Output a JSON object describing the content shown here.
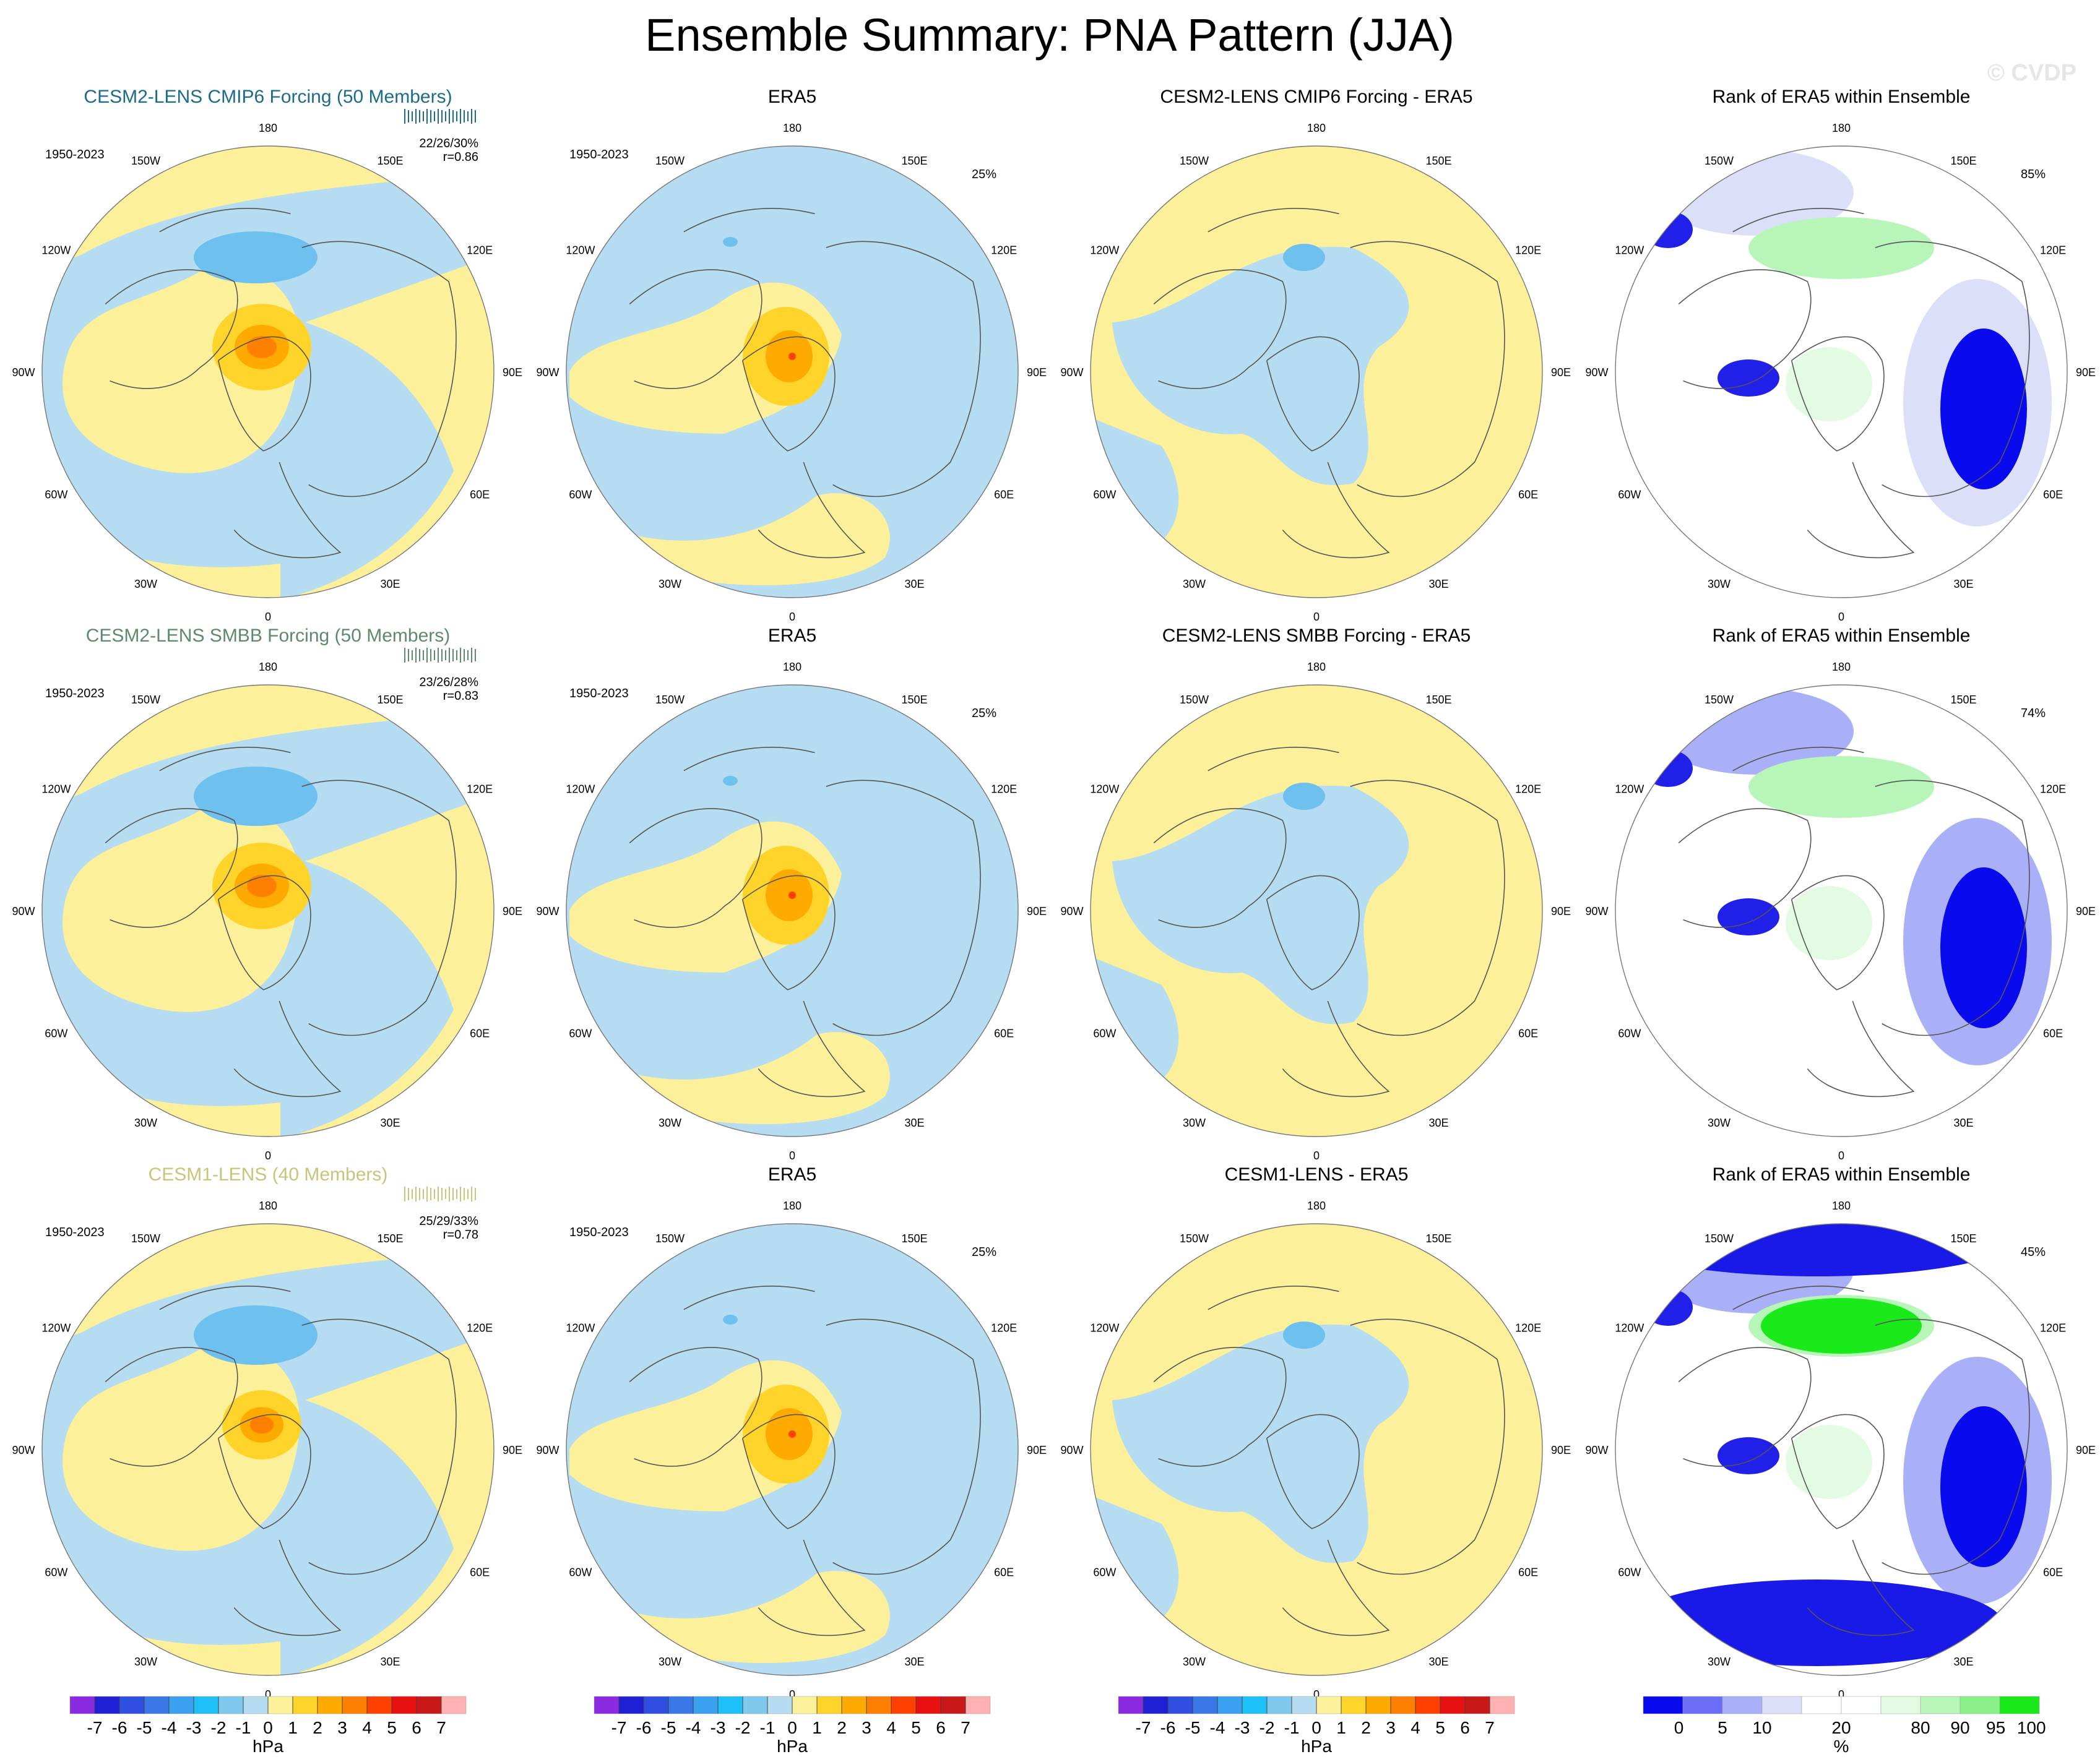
{
  "title": "Ensemble Summary: PNA Pattern (JJA)",
  "watermark": "© CVDP",
  "colors": {
    "land_line": "#555555",
    "ocean_blue": "#b5dcf0",
    "pos_yellow": "#fdf09a",
    "ring_title_model1": "#1a6b8c",
    "ring_title_model2": "#5e8a6b",
    "ring_title_model3": "#c8c47a"
  },
  "lon_labels": [
    "180",
    "150E",
    "120E",
    "90E",
    "60E",
    "30E",
    "0",
    "30W",
    "60W",
    "90W",
    "120W",
    "150W"
  ],
  "rows": [
    {
      "model_panel": {
        "title": "CESM2-LENS CMIP6 Forcing (50 Members)",
        "title_color": "#1a6b8c",
        "period": "1950-2023",
        "stats": "22/26/30%",
        "corr": "r=0.86",
        "pattern": "cmip6"
      },
      "obs_panel": {
        "title": "ERA5",
        "period": "1950-2023",
        "pct": "25%"
      },
      "diff_panel": {
        "title": "CESM2-LENS CMIP6 Forcing - ERA5"
      },
      "rank_panel": {
        "title": "Rank of ERA5 within Ensemble",
        "pct": "85%"
      }
    },
    {
      "model_panel": {
        "title": "CESM2-LENS SMBB Forcing (50 Members)",
        "title_color": "#5e8a6b",
        "period": "1950-2023",
        "stats": "23/26/28%",
        "corr": "r=0.83",
        "pattern": "smbb"
      },
      "obs_panel": {
        "title": "ERA5",
        "period": "1950-2023",
        "pct": "25%"
      },
      "diff_panel": {
        "title": "CESM2-LENS SMBB Forcing - ERA5"
      },
      "rank_panel": {
        "title": "Rank of ERA5 within Ensemble",
        "pct": "74%"
      }
    },
    {
      "model_panel": {
        "title": "CESM1-LENS (40 Members)",
        "title_color": "#c8c47a",
        "period": "1950-2023",
        "stats": "25/29/33%",
        "corr": "r=0.78",
        "pattern": "cesm1"
      },
      "obs_panel": {
        "title": "ERA5",
        "period": "1950-2023",
        "pct": "25%"
      },
      "diff_panel": {
        "title": "CESM1-LENS - ERA5"
      },
      "rank_panel": {
        "title": "Rank of ERA5 within Ensemble",
        "pct": "45%"
      }
    }
  ],
  "colorbar_hpa": {
    "label": "hPa",
    "ticks": [
      "-7",
      "-6",
      "-5",
      "-4",
      "-3",
      "-2",
      "-1",
      "0",
      "1",
      "2",
      "3",
      "4",
      "5",
      "6",
      "7"
    ],
    "colors": [
      "#8a2be2",
      "#1f1fd6",
      "#2f4fe0",
      "#3a78e8",
      "#3aa0f0",
      "#1ec0f8",
      "#7fc8ee",
      "#b5dcf0",
      "#fdf09a",
      "#ffd42a",
      "#ffaa00",
      "#ff8000",
      "#ff4000",
      "#e81010",
      "#c81818",
      "#ffb0b0"
    ]
  },
  "colorbar_pct": {
    "label": "%",
    "ticks": [
      "0",
      "5",
      "10",
      "20",
      "80",
      "90",
      "95",
      "100"
    ],
    "colors": [
      "#0a0aef",
      "#6a6ef6",
      "#aab0f8",
      "#dcdff8",
      "#ffffff",
      "#ffffff",
      "#e3fbe3",
      "#b8f5b8",
      "#8af08a",
      "#1aea1a"
    ]
  },
  "chart_data": [
    {
      "type": "map-grid",
      "title": "Ensemble Summary: PNA Pattern (JJA)",
      "projection": "north polar stereographic",
      "units_contour": "hPa",
      "units_rank": "%",
      "panels": [
        {
          "row": 1,
          "col": 1,
          "title": "CESM2-LENS CMIP6 Forcing (50 Members)",
          "stats": "22/26/30%",
          "r": 0.86
        },
        {
          "row": 1,
          "col": 2,
          "title": "ERA5",
          "pct": 25
        },
        {
          "row": 1,
          "col": 3,
          "title": "CESM2-LENS CMIP6 Forcing - ERA5"
        },
        {
          "row": 1,
          "col": 4,
          "title": "Rank of ERA5 within Ensemble",
          "pct": 85
        },
        {
          "row": 2,
          "col": 1,
          "title": "CESM2-LENS SMBB Forcing (50 Members)",
          "stats": "23/26/28%",
          "r": 0.83
        },
        {
          "row": 2,
          "col": 2,
          "title": "ERA5",
          "pct": 25
        },
        {
          "row": 2,
          "col": 3,
          "title": "CESM2-LENS SMBB Forcing - ERA5"
        },
        {
          "row": 2,
          "col": 4,
          "title": "Rank of ERA5 within Ensemble",
          "pct": 74
        },
        {
          "row": 3,
          "col": 1,
          "title": "CESM1-LENS (40 Members)",
          "stats": "25/29/33%",
          "r": 0.78
        },
        {
          "row": 3,
          "col": 2,
          "title": "ERA5",
          "pct": 25
        },
        {
          "row": 3,
          "col": 3,
          "title": "CESM1-LENS - ERA5"
        },
        {
          "row": 3,
          "col": 4,
          "title": "Rank of ERA5 within Ensemble",
          "pct": 45
        }
      ],
      "contour_levels_hpa": [
        -7,
        -6,
        -5,
        -4,
        -3,
        -2,
        -1,
        0,
        1,
        2,
        3,
        4,
        5,
        6,
        7
      ],
      "rank_levels_pct": [
        0,
        5,
        10,
        20,
        80,
        90,
        95,
        100
      ]
    }
  ]
}
